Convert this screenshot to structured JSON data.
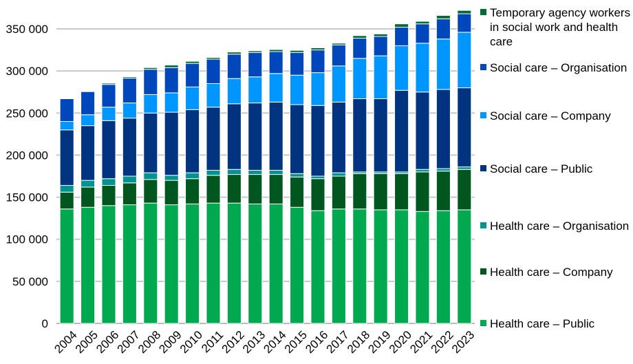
{
  "chart_data": {
    "type": "bar",
    "stacked": true,
    "categories": [
      "2004",
      "2005",
      "2006",
      "2007",
      "2008",
      "2009",
      "2010",
      "2011",
      "2012",
      "2013",
      "2014",
      "2015",
      "2016",
      "2017",
      "2018",
      "2019",
      "2020",
      "2021",
      "2022",
      "2023"
    ],
    "ylim": [
      0,
      350000
    ],
    "yticks": [
      0,
      50000,
      100000,
      150000,
      200000,
      250000,
      300000,
      350000
    ],
    "ytick_labels": [
      "0",
      "50 000",
      "100 000",
      "150 000",
      "200 000",
      "250 000",
      "300 000",
      "350 000"
    ],
    "grid": true,
    "legend": "right",
    "series": [
      {
        "name": "Health care – Public",
        "color": "#00a94f",
        "values": [
          136000,
          138000,
          140000,
          141000,
          143000,
          141000,
          142000,
          143000,
          143000,
          142000,
          142000,
          138000,
          134000,
          136000,
          136000,
          135000,
          135000,
          133000,
          134000,
          135000
        ]
      },
      {
        "name": "Health care – Company",
        "color": "#00561f",
        "values": [
          20000,
          24000,
          24000,
          26000,
          28000,
          29000,
          30000,
          33000,
          34000,
          35000,
          35000,
          36000,
          38000,
          39000,
          42000,
          43000,
          43000,
          47000,
          47000,
          48000
        ]
      },
      {
        "name": "Health care – Organisation",
        "color": "#009390",
        "values": [
          8000,
          8000,
          8000,
          8000,
          8000,
          6000,
          7000,
          6000,
          6000,
          5000,
          5000,
          4000,
          3000,
          4000,
          2000,
          2000,
          2000,
          3000,
          3000,
          3000
        ]
      },
      {
        "name": "Social care – Public",
        "color": "#003380",
        "values": [
          66000,
          65000,
          69000,
          69000,
          71000,
          75000,
          75000,
          75000,
          78000,
          80000,
          81000,
          82000,
          84000,
          84000,
          87000,
          87000,
          97000,
          92000,
          94000,
          94000
        ]
      },
      {
        "name": "Social care – Company",
        "color": "#0096ff",
        "values": [
          10000,
          13000,
          16000,
          18000,
          22000,
          23000,
          27000,
          28000,
          30000,
          31000,
          34000,
          35000,
          39000,
          43000,
          48000,
          51000,
          53000,
          58000,
          60000,
          66000
        ]
      },
      {
        "name": "Social care – Organisation",
        "color": "#0047bb",
        "values": [
          27000,
          27500,
          27000,
          29500,
          30000,
          30000,
          28000,
          29000,
          29000,
          29000,
          26000,
          27000,
          27000,
          25000,
          24000,
          23000,
          22000,
          23000,
          24000,
          22000
        ]
      },
      {
        "name": "Temporary agency workers in social work and health care",
        "color": "#006a35",
        "values": [
          500,
          500,
          1500,
          1500,
          2000,
          3000,
          2500,
          2000,
          2500,
          2000,
          2500,
          2500,
          2500,
          2000,
          3000,
          3000,
          4000,
          3000,
          4000,
          4000
        ]
      }
    ]
  }
}
